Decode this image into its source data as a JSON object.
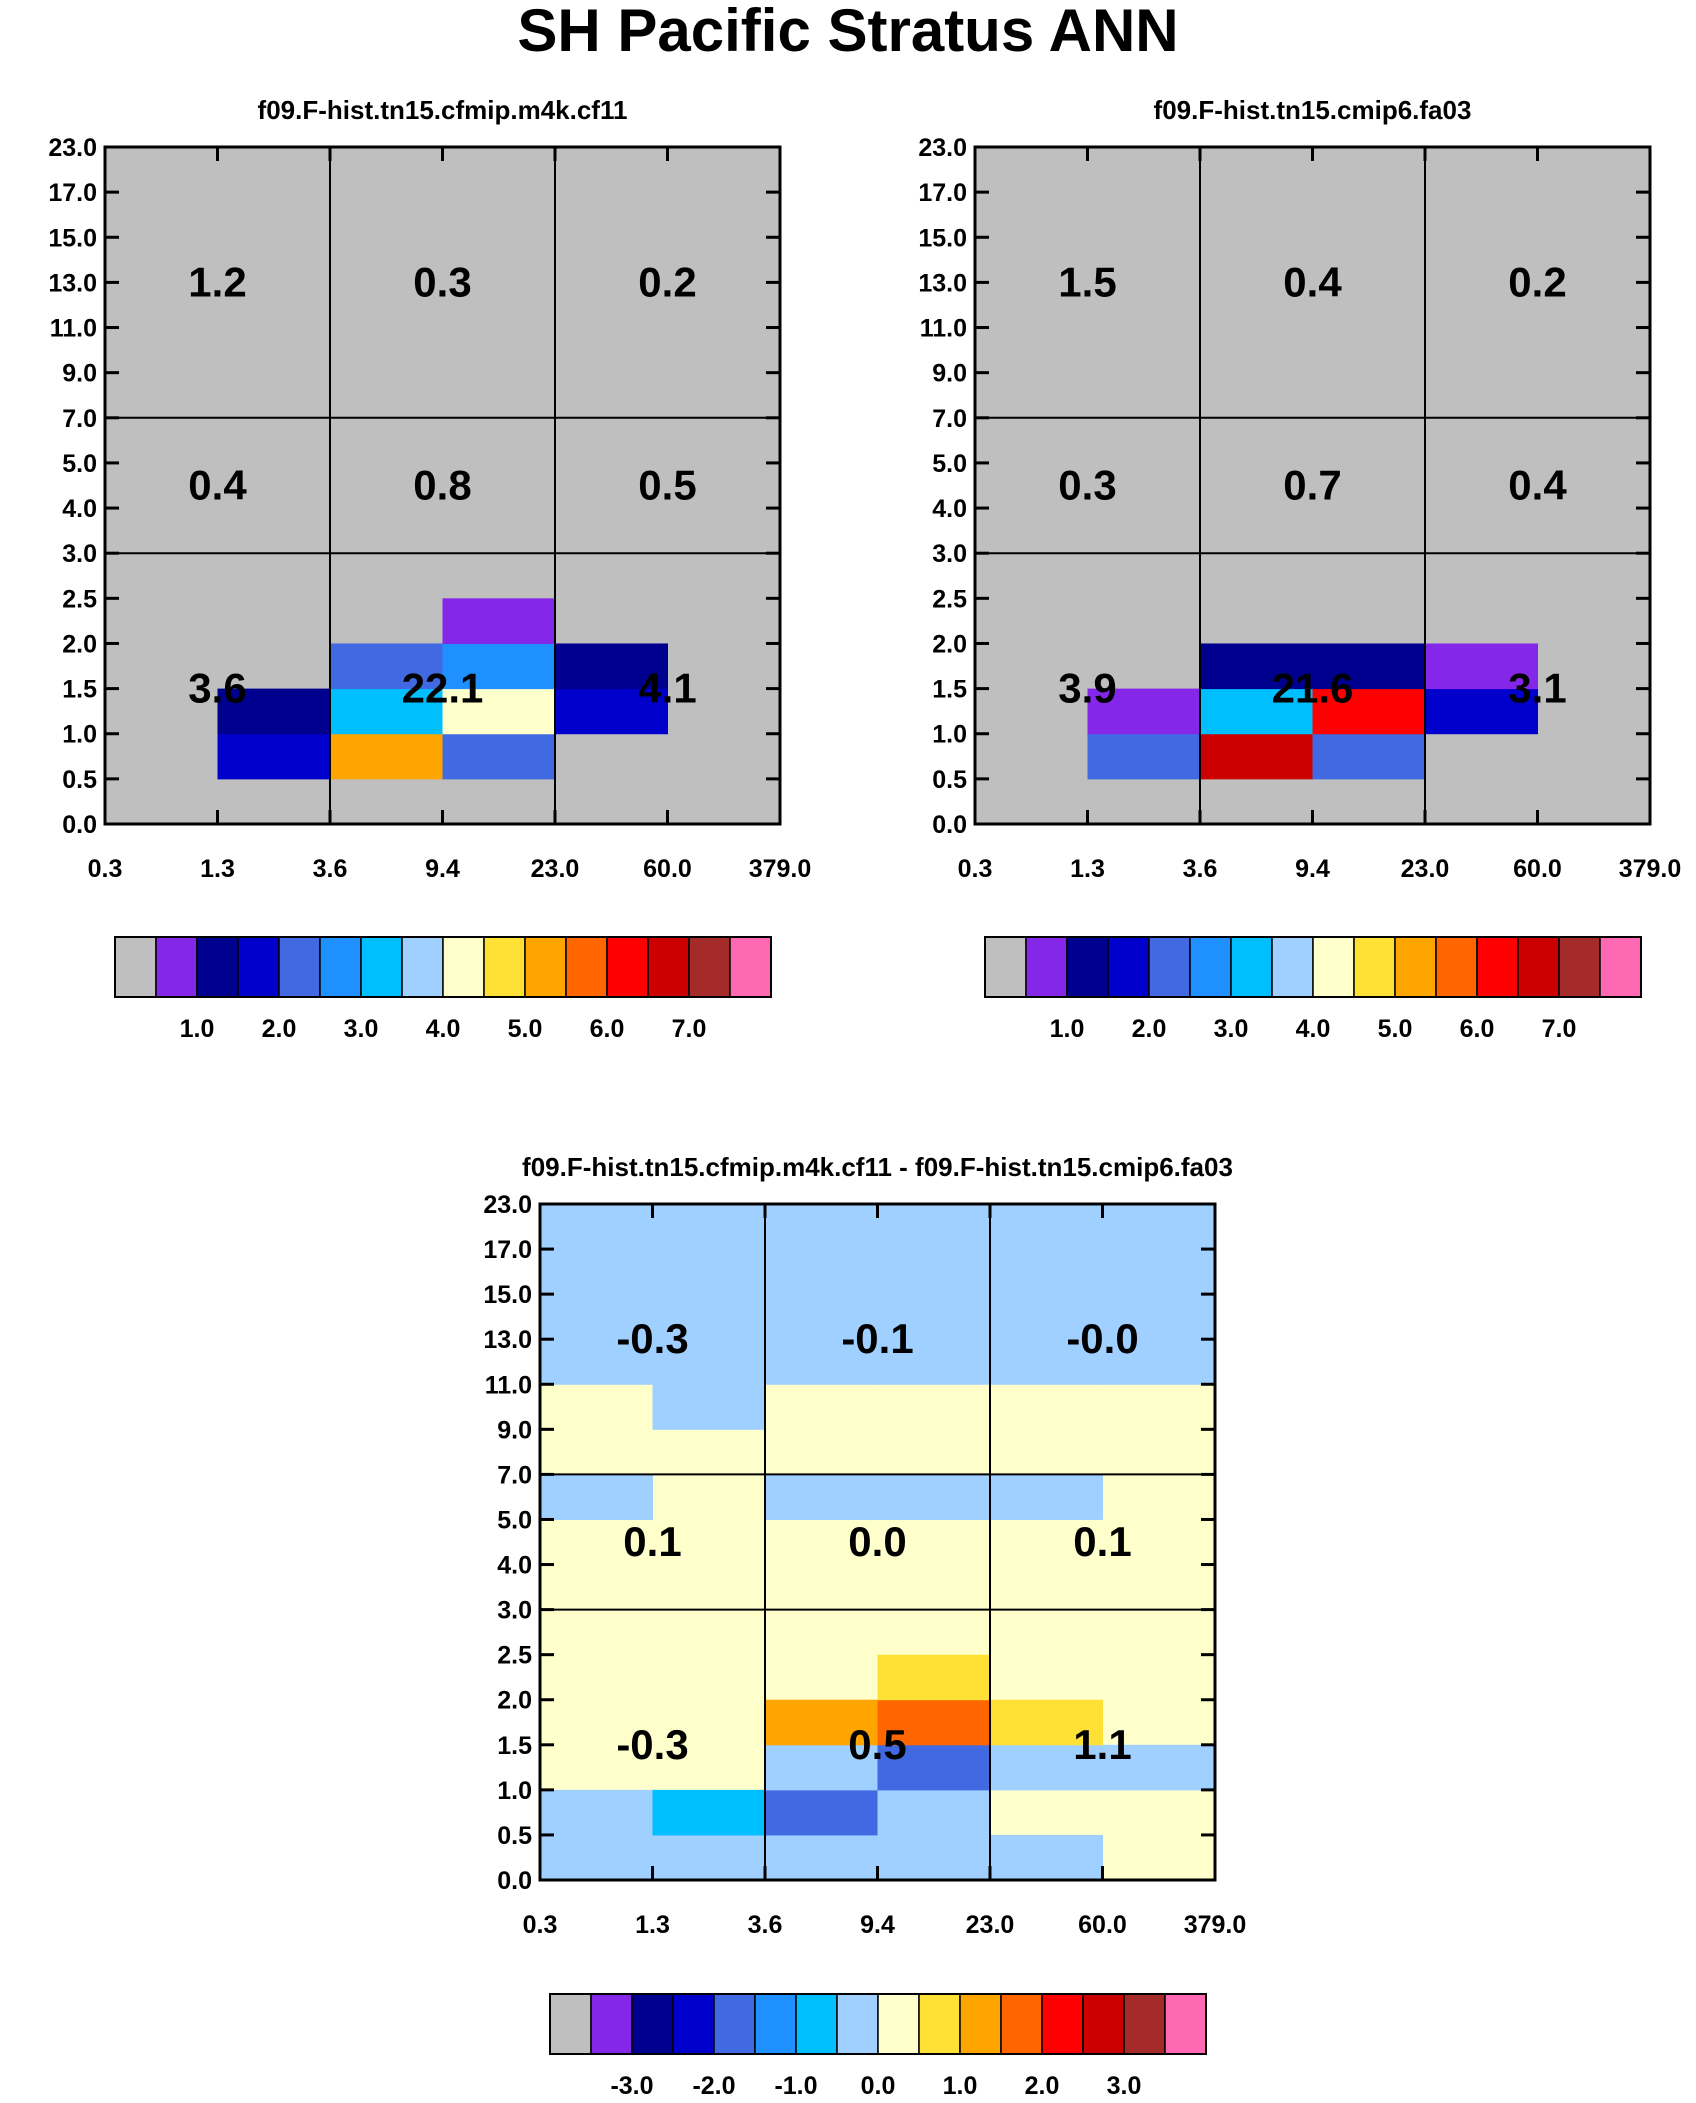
{
  "title": "SH Pacific Stratus ANN",
  "colorbar_colors": [
    "#bfbfbf",
    "#8427e8",
    "#00008e",
    "#0000cd",
    "#4169e1",
    "#1e90ff",
    "#00bfff",
    "#a0d0ff",
    "#ffffcc",
    "#ffe135",
    "#ffa500",
    "#ff6600",
    "#ff0000",
    "#cc0000",
    "#a52a2a",
    "#ff69b4"
  ],
  "chart_data": [
    {
      "id": "panel1",
      "type": "heatmap",
      "title": "f09.F-hist.tn15.cfmip.m4k.cf11",
      "x_tick_labels": [
        "0.3",
        "1.3",
        "3.6",
        "9.4",
        "23.0",
        "60.0",
        "379.0"
      ],
      "y_tick_labels": [
        "0.0",
        "0.5",
        "1.0",
        "1.5",
        "2.0",
        "2.5",
        "3.0",
        "4.0",
        "5.0",
        "7.0",
        "9.0",
        "11.0",
        "13.0",
        "15.0",
        "17.0",
        "23.0"
      ],
      "background_color": "#bfbfbf",
      "cells": [
        {
          "col": 1,
          "row": 1,
          "color_index": 3
        },
        {
          "col": 2,
          "row": 1,
          "color_index": 10
        },
        {
          "col": 3,
          "row": 1,
          "color_index": 4
        },
        {
          "col": 1,
          "row": 2,
          "color_index": 2
        },
        {
          "col": 2,
          "row": 2,
          "color_index": 6
        },
        {
          "col": 3,
          "row": 2,
          "color_index": 8
        },
        {
          "col": 4,
          "row": 2,
          "color_index": 3
        },
        {
          "col": 2,
          "row": 3,
          "color_index": 4
        },
        {
          "col": 3,
          "row": 3,
          "color_index": 5
        },
        {
          "col": 4,
          "row": 3,
          "color_index": 2
        },
        {
          "col": 3,
          "row": 4,
          "color_index": 1
        }
      ],
      "region_values": [
        {
          "region": "low-thin",
          "value": "3.6"
        },
        {
          "region": "low-mid",
          "value": "22.1"
        },
        {
          "region": "low-thick",
          "value": "4.1"
        },
        {
          "region": "mid-thin",
          "value": "0.4"
        },
        {
          "region": "mid-mid",
          "value": "0.8"
        },
        {
          "region": "mid-thick",
          "value": "0.5"
        },
        {
          "region": "high-thin",
          "value": "1.2"
        },
        {
          "region": "high-mid",
          "value": "0.3"
        },
        {
          "region": "high-thick",
          "value": "0.2"
        }
      ],
      "colorbar_labels": [
        "1.0",
        "2.0",
        "3.0",
        "4.0",
        "5.0",
        "6.0",
        "7.0"
      ]
    },
    {
      "id": "panel2",
      "type": "heatmap",
      "title": "f09.F-hist.tn15.cmip6.fa03",
      "x_tick_labels": [
        "0.3",
        "1.3",
        "3.6",
        "9.4",
        "23.0",
        "60.0",
        "379.0"
      ],
      "y_tick_labels": [
        "0.0",
        "0.5",
        "1.0",
        "1.5",
        "2.0",
        "2.5",
        "3.0",
        "4.0",
        "5.0",
        "7.0",
        "9.0",
        "11.0",
        "13.0",
        "15.0",
        "17.0",
        "23.0"
      ],
      "background_color": "#bfbfbf",
      "cells": [
        {
          "col": 1,
          "row": 1,
          "color_index": 4
        },
        {
          "col": 2,
          "row": 1,
          "color_index": 13
        },
        {
          "col": 3,
          "row": 1,
          "color_index": 4
        },
        {
          "col": 1,
          "row": 2,
          "color_index": 1
        },
        {
          "col": 2,
          "row": 2,
          "color_index": 6
        },
        {
          "col": 3,
          "row": 2,
          "color_index": 12
        },
        {
          "col": 4,
          "row": 2,
          "color_index": 3
        },
        {
          "col": 2,
          "row": 3,
          "color_index": 2
        },
        {
          "col": 3,
          "row": 3,
          "color_index": 2
        },
        {
          "col": 4,
          "row": 3,
          "color_index": 1
        }
      ],
      "region_values": [
        {
          "region": "low-thin",
          "value": "3.9"
        },
        {
          "region": "low-mid",
          "value": "21.6"
        },
        {
          "region": "low-thick",
          "value": "3.1"
        },
        {
          "region": "mid-thin",
          "value": "0.3"
        },
        {
          "region": "mid-mid",
          "value": "0.7"
        },
        {
          "region": "mid-thick",
          "value": "0.4"
        },
        {
          "region": "high-thin",
          "value": "1.5"
        },
        {
          "region": "high-mid",
          "value": "0.4"
        },
        {
          "region": "high-thick",
          "value": "0.2"
        }
      ],
      "colorbar_labels": [
        "1.0",
        "2.0",
        "3.0",
        "4.0",
        "5.0",
        "6.0",
        "7.0"
      ]
    },
    {
      "id": "panel3",
      "type": "heatmap",
      "title": "f09.F-hist.tn15.cfmip.m4k.cf11 - f09.F-hist.tn15.cmip6.fa03",
      "x_tick_labels": [
        "0.3",
        "1.3",
        "3.6",
        "9.4",
        "23.0",
        "60.0",
        "379.0"
      ],
      "y_tick_labels": [
        "0.0",
        "0.5",
        "1.0",
        "1.5",
        "2.0",
        "2.5",
        "3.0",
        "4.0",
        "5.0",
        "7.0",
        "9.0",
        "11.0",
        "13.0",
        "15.0",
        "17.0",
        "23.0"
      ],
      "background_color": "#ffffcc",
      "cells": [
        {
          "col": 0,
          "row": 0,
          "color_index": 7
        },
        {
          "col": 1,
          "row": 0,
          "color_index": 7
        },
        {
          "col": 2,
          "row": 0,
          "color_index": 7
        },
        {
          "col": 3,
          "row": 0,
          "color_index": 7
        },
        {
          "col": 4,
          "row": 0,
          "color_index": 7
        },
        {
          "col": 0,
          "row": 1,
          "color_index": 7
        },
        {
          "col": 1,
          "row": 1,
          "color_index": 6
        },
        {
          "col": 2,
          "row": 1,
          "color_index": 4
        },
        {
          "col": 3,
          "row": 1,
          "color_index": 7
        },
        {
          "col": 2,
          "row": 2,
          "color_index": 7
        },
        {
          "col": 3,
          "row": 2,
          "color_index": 4
        },
        {
          "col": 4,
          "row": 2,
          "color_index": 7
        },
        {
          "col": 5,
          "row": 2,
          "color_index": 7
        },
        {
          "col": 2,
          "row": 3,
          "color_index": 10
        },
        {
          "col": 3,
          "row": 3,
          "color_index": 11
        },
        {
          "col": 4,
          "row": 3,
          "color_index": 9
        },
        {
          "col": 3,
          "row": 4,
          "color_index": 9
        },
        {
          "col": 0,
          "row": 8,
          "color_index": 7
        },
        {
          "col": 2,
          "row": 8,
          "color_index": 7
        },
        {
          "col": 3,
          "row": 8,
          "color_index": 7
        },
        {
          "col": 4,
          "row": 8,
          "color_index": 7
        },
        {
          "col": 1,
          "row": 10,
          "color_index": 7
        },
        {
          "col": 0,
          "row": 11,
          "color_index": 7
        },
        {
          "col": 1,
          "row": 11,
          "color_index": 7
        },
        {
          "col": 2,
          "row": 11,
          "color_index": 7
        },
        {
          "col": 3,
          "row": 11,
          "color_index": 7
        },
        {
          "col": 4,
          "row": 11,
          "color_index": 7
        },
        {
          "col": 5,
          "row": 11,
          "color_index": 7
        },
        {
          "col": 0,
          "row": 12,
          "color_index": 7
        },
        {
          "col": 1,
          "row": 12,
          "color_index": 7
        },
        {
          "col": 2,
          "row": 12,
          "color_index": 7
        },
        {
          "col": 3,
          "row": 12,
          "color_index": 7
        },
        {
          "col": 4,
          "row": 12,
          "color_index": 7
        },
        {
          "col": 5,
          "row": 12,
          "color_index": 7
        },
        {
          "col": 0,
          "row": 13,
          "color_index": 7
        },
        {
          "col": 1,
          "row": 13,
          "color_index": 7
        },
        {
          "col": 2,
          "row": 13,
          "color_index": 7
        },
        {
          "col": 3,
          "row": 13,
          "color_index": 7
        },
        {
          "col": 4,
          "row": 13,
          "color_index": 7
        },
        {
          "col": 5,
          "row": 13,
          "color_index": 7
        },
        {
          "col": 0,
          "row": 14,
          "color_index": 7
        },
        {
          "col": 1,
          "row": 14,
          "color_index": 7
        },
        {
          "col": 2,
          "row": 14,
          "color_index": 7
        },
        {
          "col": 3,
          "row": 14,
          "color_index": 7
        },
        {
          "col": 4,
          "row": 14,
          "color_index": 7
        },
        {
          "col": 5,
          "row": 14,
          "color_index": 7
        }
      ],
      "region_values": [
        {
          "region": "low-thin",
          "value": "-0.3"
        },
        {
          "region": "low-mid",
          "value": "0.5"
        },
        {
          "region": "low-thick",
          "value": "1.1"
        },
        {
          "region": "mid-thin",
          "value": "0.1"
        },
        {
          "region": "mid-mid",
          "value": "0.0"
        },
        {
          "region": "mid-thick",
          "value": "0.1"
        },
        {
          "region": "high-thin",
          "value": "-0.3"
        },
        {
          "region": "high-mid",
          "value": "-0.1"
        },
        {
          "region": "high-thick",
          "value": "-0.0"
        }
      ],
      "colorbar_labels": [
        "-3.0",
        "-2.0",
        "-1.0",
        "0.0",
        "1.0",
        "2.0",
        "3.0"
      ]
    }
  ]
}
